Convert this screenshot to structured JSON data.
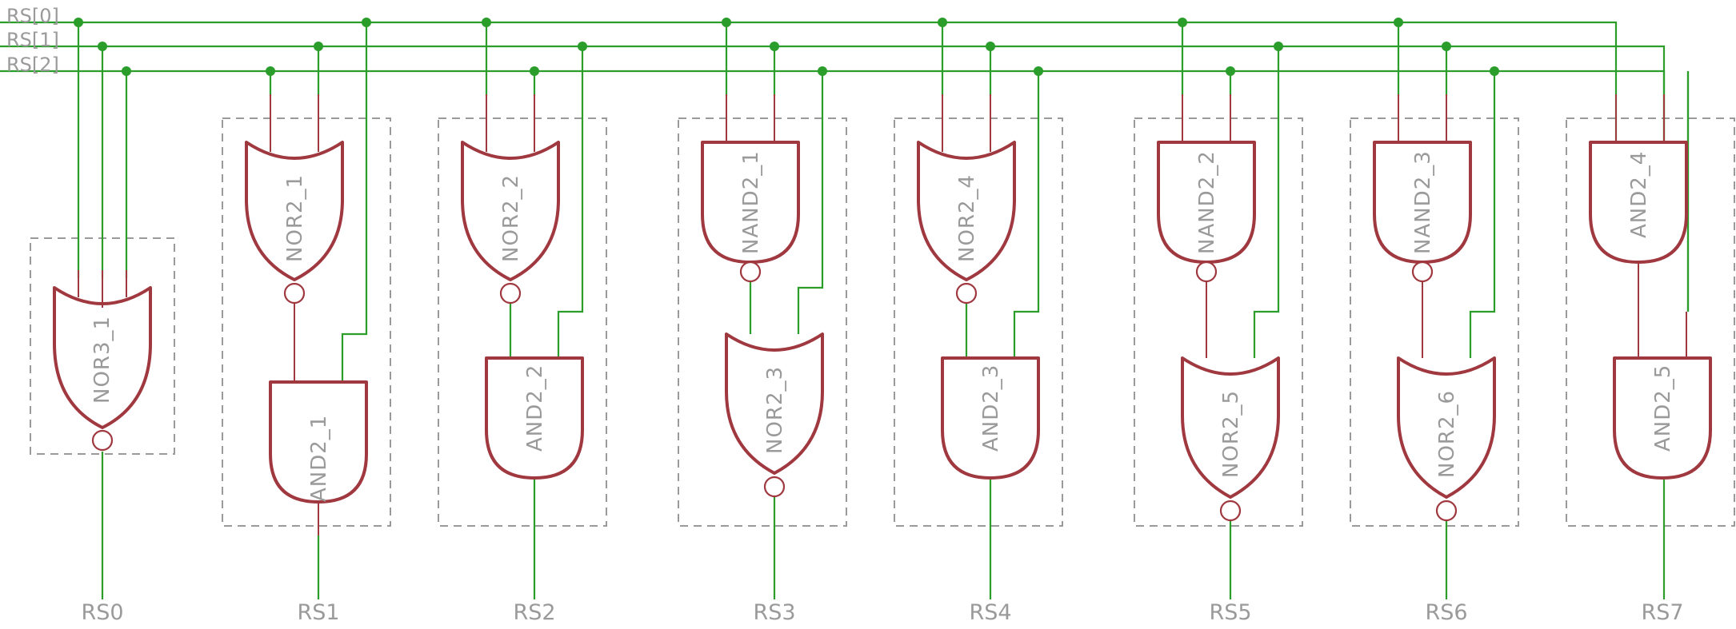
{
  "bus": [
    "RS[0]",
    "RS[1]",
    "RS[2]"
  ],
  "gates": {
    "nor3_1": "NOR3_1",
    "nor2_1": "NOR2_1",
    "nor2_2": "NOR2_2",
    "nor2_3": "NOR2_3",
    "nor2_4": "NOR2_4",
    "nor2_5": "NOR2_5",
    "nor2_6": "NOR2_6",
    "nand2_1": "NAND2_1",
    "nand2_2": "NAND2_2",
    "nand2_3": "NAND2_3",
    "and2_1": "AND2_1",
    "and2_2": "AND2_2",
    "and2_3": "AND2_3",
    "and2_4": "AND2_4",
    "and2_5": "AND2_5"
  },
  "outputs": [
    "RS0",
    "RS1",
    "RS2",
    "RS3",
    "RS4",
    "RS5",
    "RS6",
    "RS7"
  ],
  "colors": {
    "wire": "#2a9d2a",
    "gate": "#a0383f",
    "frame": "#9a9a9a",
    "text": "#9a9a9a"
  }
}
